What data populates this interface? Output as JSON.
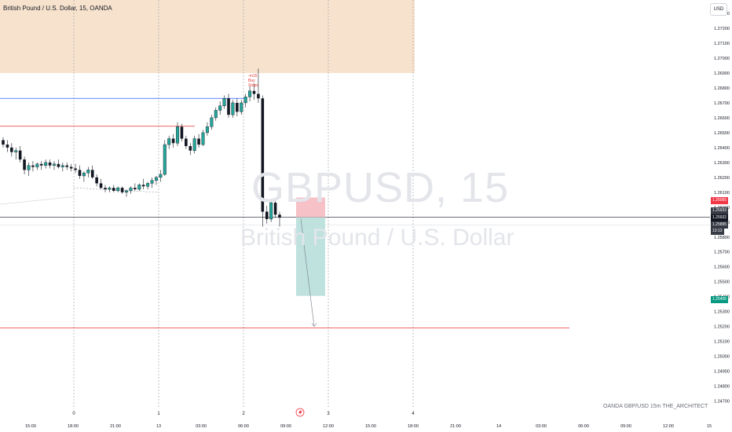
{
  "header": {
    "title": "British Pound / U.S. Dollar, 15, OANDA",
    "currency_button": "USD"
  },
  "watermark": {
    "symbol": "GBPUSD, 15",
    "name": "British Pound / U.S. Dollar"
  },
  "footer": {
    "credit": "OANDA  GBP/USD 15m  THE_ARCHITECT"
  },
  "annotation": {
    "lines": [
      "-m15",
      "Buy",
      "Stops"
    ]
  },
  "colors": {
    "up": "#26a69a",
    "down": "#131722",
    "zone": "#f5dcc0",
    "sell_stop": "#f4b6bd",
    "sell_target": "#b4ddd8",
    "red_line": "#e53935",
    "blue_line": "#2962ff",
    "tag_red": "#f23645",
    "tag_green": "#089981",
    "tag_dark": "#363a45"
  },
  "chart_data": {
    "type": "candlestick",
    "symbol": "GBPUSD",
    "timeframe": "15",
    "y_axis": {
      "range": [
        1.2465,
        1.2739
      ],
      "ticks": [
        "1.27300",
        "1.27200",
        "1.27100",
        "1.27000",
        "1.26900",
        "1.26800",
        "1.26700",
        "1.26600",
        "1.26500",
        "1.26400",
        "1.26300",
        "1.26200",
        "1.26100",
        "1.26000",
        "1.25900",
        "1.25800",
        "1.25700",
        "1.25600",
        "1.25500",
        "1.25400",
        "1.25300",
        "1.25200",
        "1.25100",
        "1.25000",
        "1.24900",
        "1.24800",
        "1.24700"
      ]
    },
    "x_axis": {
      "ticks": [
        "15:00",
        "18:00",
        "21:00",
        "13",
        "03:00",
        "06:00",
        "09:00",
        "12:00",
        "15:00",
        "18:00",
        "21:00",
        "14",
        "03:00",
        "06:00",
        "09:00",
        "12:00",
        "15"
      ],
      "day_markers": [
        "0",
        "1",
        "2",
        "3",
        "4"
      ]
    },
    "price_tags": [
      {
        "label": "1.26065",
        "price": 1.26065,
        "color": "#f23645"
      },
      {
        "label": "1.25933",
        "price": 1.25933,
        "color": "#363a45"
      },
      {
        "label": "1.25932",
        "price": 1.25932,
        "color": "#131722"
      },
      {
        "label": "1.25895",
        "price": 1.25895,
        "color": "#363a45"
      },
      {
        "label": "13:13",
        "price": 1.2586,
        "color": "#363a45"
      },
      {
        "label": "1.25405",
        "price": 1.25405,
        "color": "#089981"
      }
    ],
    "levels": [
      {
        "name": "blue",
        "price": 1.2673,
        "color": "#2962ff"
      },
      {
        "name": "red-upper",
        "price": 1.26543,
        "color": "#e53935"
      },
      {
        "name": "red-lower",
        "price": 1.2519,
        "color": "#e53935"
      },
      {
        "name": "current",
        "price": 1.25932,
        "color": "#131722"
      }
    ],
    "supply_zone": {
      "from": 1.269,
      "to": 1.2739
    },
    "position": {
      "type": "short",
      "entry": 1.25932,
      "stop": 1.26065,
      "target": 1.25405
    },
    "candles": [
      [
        1.2645,
        1.2647,
        1.264,
        1.2642
      ],
      [
        1.2642,
        1.2645,
        1.2637,
        1.264
      ],
      [
        1.264,
        1.2643,
        1.2634,
        1.2637
      ],
      [
        1.2637,
        1.264,
        1.2632,
        1.2638
      ],
      [
        1.2638,
        1.2641,
        1.263,
        1.2632
      ],
      [
        1.2632,
        1.2634,
        1.2622,
        1.2625
      ],
      [
        1.2625,
        1.263,
        1.2621,
        1.2628
      ],
      [
        1.2628,
        1.2631,
        1.2624,
        1.2627
      ],
      [
        1.2627,
        1.263,
        1.2625,
        1.2629
      ],
      [
        1.2629,
        1.2631,
        1.2625,
        1.2628
      ],
      [
        1.2628,
        1.2632,
        1.2626,
        1.263
      ],
      [
        1.263,
        1.2632,
        1.2626,
        1.2628
      ],
      [
        1.2628,
        1.2631,
        1.2625,
        1.2629
      ],
      [
        1.2629,
        1.2632,
        1.2626,
        1.2627
      ],
      [
        1.2627,
        1.263,
        1.2624,
        1.2628
      ],
      [
        1.2628,
        1.263,
        1.2625,
        1.2627
      ],
      [
        1.2627,
        1.2629,
        1.2624,
        1.2626
      ],
      [
        1.2626,
        1.2629,
        1.2623,
        1.2625
      ],
      [
        1.2625,
        1.2628,
        1.2619,
        1.2621
      ],
      [
        1.2621,
        1.2624,
        1.2617,
        1.2623
      ],
      [
        1.2623,
        1.2627,
        1.262,
        1.2625
      ],
      [
        1.2625,
        1.2628,
        1.2619,
        1.262
      ],
      [
        1.262,
        1.2622,
        1.2614,
        1.2616
      ],
      [
        1.2616,
        1.2619,
        1.2612,
        1.2613
      ],
      [
        1.2613,
        1.2615,
        1.261,
        1.2612
      ],
      [
        1.2612,
        1.2614,
        1.261,
        1.2613
      ],
      [
        1.2613,
        1.2615,
        1.261,
        1.2611
      ],
      [
        1.2611,
        1.2614,
        1.261,
        1.2613
      ],
      [
        1.2613,
        1.2614,
        1.2609,
        1.261
      ],
      [
        1.261,
        1.2612,
        1.2607,
        1.2611
      ],
      [
        1.2611,
        1.2614,
        1.2609,
        1.2613
      ],
      [
        1.2613,
        1.2616,
        1.2611,
        1.2612
      ],
      [
        1.2612,
        1.2616,
        1.2611,
        1.2615
      ],
      [
        1.2615,
        1.2619,
        1.2612,
        1.2614
      ],
      [
        1.2614,
        1.2617,
        1.2612,
        1.2616
      ],
      [
        1.2616,
        1.262,
        1.2613,
        1.2618
      ],
      [
        1.2618,
        1.2621,
        1.2615,
        1.262
      ],
      [
        1.262,
        1.2625,
        1.2617,
        1.2622
      ],
      [
        1.2622,
        1.2645,
        1.2621,
        1.2642
      ],
      [
        1.2642,
        1.2648,
        1.2639,
        1.2646
      ],
      [
        1.2646,
        1.2649,
        1.264,
        1.2643
      ],
      [
        1.2643,
        1.2657,
        1.2641,
        1.2654
      ],
      [
        1.2654,
        1.2656,
        1.2644,
        1.2646
      ],
      [
        1.2646,
        1.2648,
        1.2639,
        1.2641
      ],
      [
        1.2641,
        1.2643,
        1.2635,
        1.2638
      ],
      [
        1.2638,
        1.2648,
        1.2636,
        1.2646
      ],
      [
        1.2646,
        1.2649,
        1.264,
        1.2642
      ],
      [
        1.2642,
        1.2652,
        1.2641,
        1.265
      ],
      [
        1.265,
        1.2657,
        1.2648,
        1.2654
      ],
      [
        1.2654,
        1.2662,
        1.2652,
        1.266
      ],
      [
        1.266,
        1.2667,
        1.2658,
        1.2665
      ],
      [
        1.2665,
        1.2671,
        1.2662,
        1.2668
      ],
      [
        1.2668,
        1.2675,
        1.2666,
        1.2673
      ],
      [
        1.2673,
        1.2676,
        1.266,
        1.2662
      ],
      [
        1.2662,
        1.2672,
        1.266,
        1.267
      ],
      [
        1.267,
        1.2673,
        1.2661,
        1.2664
      ],
      [
        1.2664,
        1.2672,
        1.2662,
        1.267
      ],
      [
        1.267,
        1.2676,
        1.2667,
        1.2674
      ],
      [
        1.2674,
        1.2681,
        1.2671,
        1.2678
      ],
      [
        1.2678,
        1.2683,
        1.2672,
        1.2676
      ],
      [
        1.2676,
        1.2693,
        1.267,
        1.2673
      ],
      [
        1.2673,
        1.2675,
        1.2587,
        1.2597
      ],
      [
        1.2597,
        1.2601,
        1.2589,
        1.2592
      ],
      [
        1.2592,
        1.2605,
        1.259,
        1.2603
      ],
      [
        1.2603,
        1.2606,
        1.2593,
        1.2595
      ],
      [
        1.2595,
        1.2597,
        1.2587,
        1.2593
      ]
    ]
  }
}
